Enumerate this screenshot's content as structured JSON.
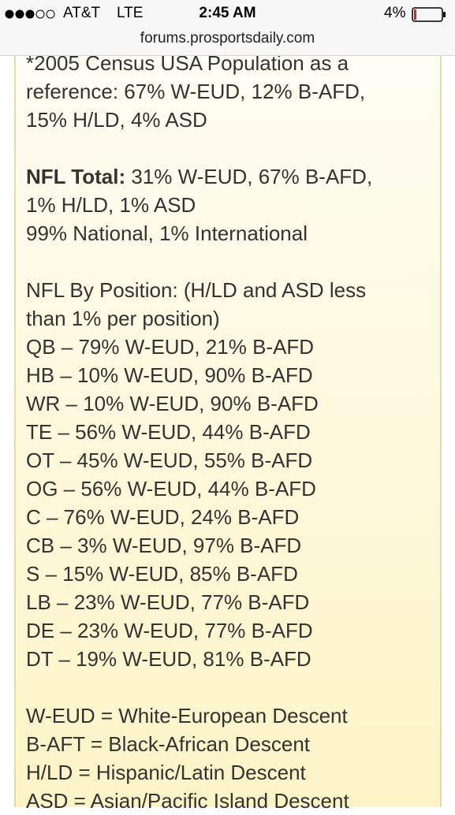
{
  "status": {
    "carrier": "AT&T",
    "network": "LTE",
    "time": "2:45 AM",
    "battery": "4%"
  },
  "url": "forums.prosportsdaily.com",
  "post": {
    "census": [
      "*2005 Census USA Population as a",
      "reference: 67% W-EUD, 12% B-AFD,",
      "15% H/LD, 4% ASD"
    ],
    "nfl_total": {
      "label": "NFL Total:",
      "lines": [
        " 31% W-EUD, 67% B-AFD,",
        "1% H/LD, 1% ASD",
        "99% National, 1% International"
      ]
    },
    "by_position": {
      "intro": [
        "NFL By Position: (H/LD and ASD less",
        "than 1% per position)"
      ],
      "rows": [
        "QB – 79% W-EUD, 21% B-AFD",
        "HB – 10% W-EUD, 90% B-AFD",
        "WR – 10% W-EUD, 90% B-AFD",
        "TE – 56% W-EUD, 44% B-AFD",
        "OT – 45% W-EUD, 55% B-AFD",
        "OG – 56% W-EUD, 44% B-AFD",
        "C – 76% W-EUD, 24% B-AFD",
        "CB – 3% W-EUD, 97% B-AFD",
        "S – 15% W-EUD, 85% B-AFD",
        "LB – 23% W-EUD, 77% B-AFD",
        "DE – 23% W-EUD, 77% B-AFD",
        "DT – 19% W-EUD, 81% B-AFD"
      ]
    },
    "legend": [
      "W-EUD = White-European Descent",
      "B-AFT = Black-African Descent",
      "H/LD = Hispanic/Latin Descent",
      "ASD = Asian/Pacific Island Descent"
    ]
  }
}
